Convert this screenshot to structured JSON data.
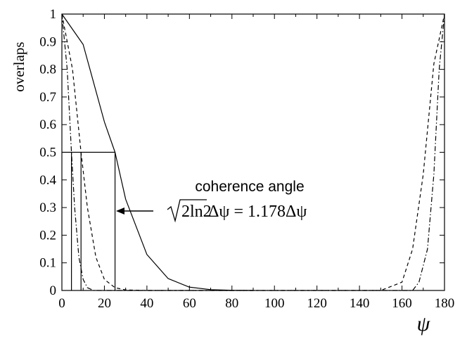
{
  "chart_data": {
    "type": "line",
    "ylabel": "overlaps",
    "xlabel": "ψ",
    "xlim": [
      0,
      180
    ],
    "ylim": [
      0,
      1
    ],
    "x_ticks": [
      "0",
      "20",
      "40",
      "60",
      "80",
      "100",
      "120",
      "140",
      "160",
      "180"
    ],
    "y_ticks": [
      "0",
      "0.1",
      "0.2",
      "0.3",
      "0.4",
      "0.5",
      "0.6",
      "0.7",
      "0.8",
      "0.9",
      "1"
    ],
    "series": [
      {
        "style": "solid",
        "x": [
          0,
          10,
          20,
          25,
          30,
          40,
          50,
          60,
          70,
          80,
          90
        ],
        "y": [
          1,
          0.89,
          0.61,
          0.5,
          0.33,
          0.13,
          0.043,
          0.012,
          0.003,
          0.0006,
          0
        ]
      },
      {
        "style": "dashed",
        "x": [
          0,
          5,
          9,
          12,
          16,
          20,
          25,
          30,
          40,
          150,
          160,
          165,
          170,
          175,
          180
        ],
        "y": [
          1,
          0.8,
          0.5,
          0.3,
          0.12,
          0.04,
          0.01,
          0.002,
          0,
          0,
          0.03,
          0.15,
          0.42,
          0.82,
          1
        ]
      },
      {
        "style": "dash-dot",
        "x": [
          0,
          2.5,
          4.5,
          6,
          8,
          10,
          12,
          15,
          165,
          168,
          172,
          175,
          177.5,
          180
        ],
        "y": [
          1,
          0.8,
          0.5,
          0.3,
          0.12,
          0.04,
          0.01,
          0,
          0,
          0.03,
          0.15,
          0.42,
          0.8,
          1
        ]
      }
    ],
    "half_max_level": 0.5,
    "half_max_x": [
      4.5,
      9,
      25
    ],
    "annotation": {
      "label": "coherence angle",
      "formula_radicand": "2ln2",
      "formula_rest": "Δψ = 1.178Δψ"
    },
    "grid": false,
    "legend": "none"
  }
}
